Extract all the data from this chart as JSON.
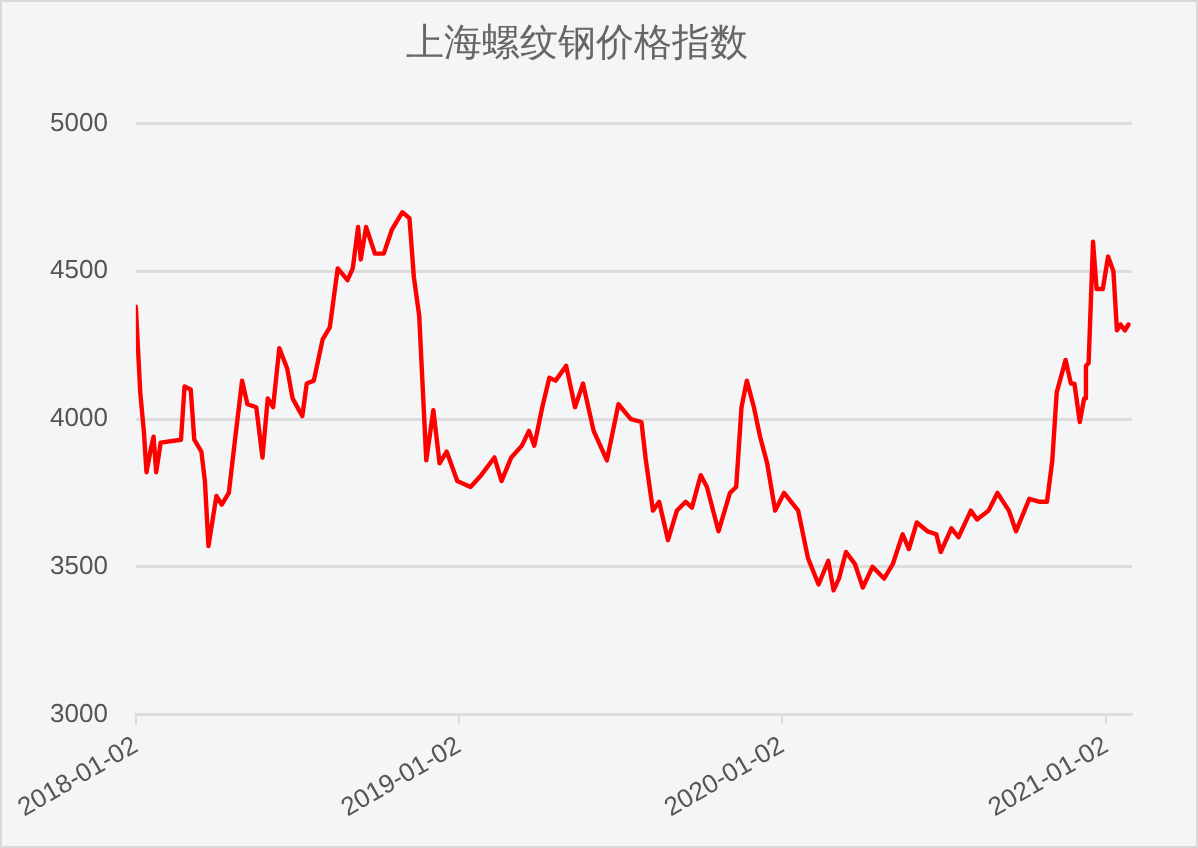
{
  "chart_data": {
    "type": "line",
    "title": "上海螺纹钢价格指数",
    "x": [
      "2018-01-02",
      "2018-01-07",
      "2018-01-11",
      "2018-01-14",
      "2018-01-19",
      "2018-01-22",
      "2018-01-25",
      "2018-01-30",
      "2018-02-22",
      "2018-02-26",
      "2018-03-05",
      "2018-03-09",
      "2018-03-17",
      "2018-03-21",
      "2018-03-25",
      "2018-04-03",
      "2018-04-09",
      "2018-04-17",
      "2018-04-24",
      "2018-05-02",
      "2018-05-08",
      "2018-05-18",
      "2018-05-25",
      "2018-05-31",
      "2018-06-06",
      "2018-06-13",
      "2018-06-22",
      "2018-06-28",
      "2018-07-09",
      "2018-07-14",
      "2018-07-22",
      "2018-08-01",
      "2018-08-09",
      "2018-08-18",
      "2018-08-29",
      "2018-09-04",
      "2018-09-10",
      "2018-09-13",
      "2018-09-19",
      "2018-09-29",
      "2018-10-09",
      "2018-10-18",
      "2018-10-30",
      "2018-11-07",
      "2018-11-12",
      "2018-11-18",
      "2018-11-26",
      "2018-12-04",
      "2018-12-11",
      "2018-12-19",
      "2018-12-31",
      "2019-01-15",
      "2019-01-27",
      "2019-02-11",
      "2019-02-19",
      "2019-03-02",
      "2019-03-14",
      "2019-03-22",
      "2019-03-28",
      "2019-04-06",
      "2019-04-14",
      "2019-04-21",
      "2019-05-03",
      "2019-05-13",
      "2019-05-22",
      "2019-06-03",
      "2019-06-18",
      "2019-07-01",
      "2019-07-15",
      "2019-07-27",
      "2019-08-01",
      "2019-08-09",
      "2019-08-16",
      "2019-08-26",
      "2019-09-05",
      "2019-09-15",
      "2019-09-22",
      "2019-10-02",
      "2019-10-09",
      "2019-10-22",
      "2019-11-04",
      "2019-11-11",
      "2019-11-17",
      "2019-11-23",
      "2019-12-01",
      "2019-12-08",
      "2019-12-16",
      "2019-12-25",
      "2020-01-04",
      "2020-01-20",
      "2020-01-31",
      "2020-02-12",
      "2020-02-23",
      "2020-02-29",
      "2020-03-06",
      "2020-03-14",
      "2020-03-24",
      "2020-04-02",
      "2020-04-13",
      "2020-04-26",
      "2020-05-06",
      "2020-05-17",
      "2020-05-24",
      "2020-06-02",
      "2020-06-14",
      "2020-06-24",
      "2020-06-29",
      "2020-07-11",
      "2020-07-19",
      "2020-08-02",
      "2020-08-09",
      "2020-08-22",
      "2020-09-01",
      "2020-09-14",
      "2020-09-22",
      "2020-10-07",
      "2020-10-19",
      "2020-10-27",
      "2020-11-02",
      "2020-11-07",
      "2020-11-17",
      "2020-11-23",
      "2020-11-27",
      "2020-12-03",
      "2020-12-08",
      "2020-12-10",
      "2020-12-13",
      "2020-12-18",
      "2020-12-22",
      "2020-12-29",
      "2021-01-04",
      "2021-01-10",
      "2021-01-14",
      "2021-01-18",
      "2021-01-23",
      "2021-01-27"
    ],
    "series": [
      {
        "color": "#ff0000",
        "values": [
          4380,
          4090,
          3960,
          3820,
          3900,
          3940,
          3820,
          3920,
          3930,
          4110,
          4100,
          3930,
          3890,
          3790,
          3570,
          3740,
          3710,
          3750,
          3930,
          4130,
          4050,
          4040,
          3870,
          4070,
          4040,
          4240,
          4170,
          4070,
          4010,
          4120,
          4130,
          4270,
          4310,
          4510,
          4470,
          4510,
          4650,
          4540,
          4650,
          4560,
          4560,
          4640,
          4700,
          4680,
          4480,
          4350,
          3860,
          4030,
          3850,
          3890,
          3790,
          3770,
          3810,
          3870,
          3790,
          3870,
          3910,
          3960,
          3910,
          4040,
          4140,
          4130,
          4180,
          4040,
          4120,
          3960,
          3860,
          4050,
          4000,
          3990,
          3860,
          3690,
          3720,
          3590,
          3690,
          3720,
          3700,
          3810,
          3770,
          3620,
          3750,
          3770,
          4040,
          4130,
          4040,
          3940,
          3850,
          3690,
          3750,
          3690,
          3530,
          3440,
          3520,
          3420,
          3460,
          3550,
          3510,
          3430,
          3500,
          3460,
          3510,
          3610,
          3560,
          3650,
          3620,
          3610,
          3550,
          3630,
          3600,
          3690,
          3660,
          3690,
          3750,
          3690,
          3620,
          3730,
          3720,
          3720,
          3860,
          4090,
          4200,
          4120,
          4120,
          3990,
          4070,
          4180,
          4190,
          4600,
          4440,
          4440,
          4550,
          4500,
          4300,
          4320,
          4300,
          4320
        ]
      }
    ],
    "xlim": [
      "2018-01-02",
      "2021-01-31"
    ],
    "xticks": [
      "2018-01-02",
      "2019-01-02",
      "2020-01-02",
      "2021-01-02"
    ],
    "ylim": [
      3000,
      5000
    ],
    "yticks": [
      3000,
      3500,
      4000,
      4500,
      5000
    ],
    "grid": "y",
    "legend": false,
    "marker": "none",
    "line_style": "solid"
  }
}
